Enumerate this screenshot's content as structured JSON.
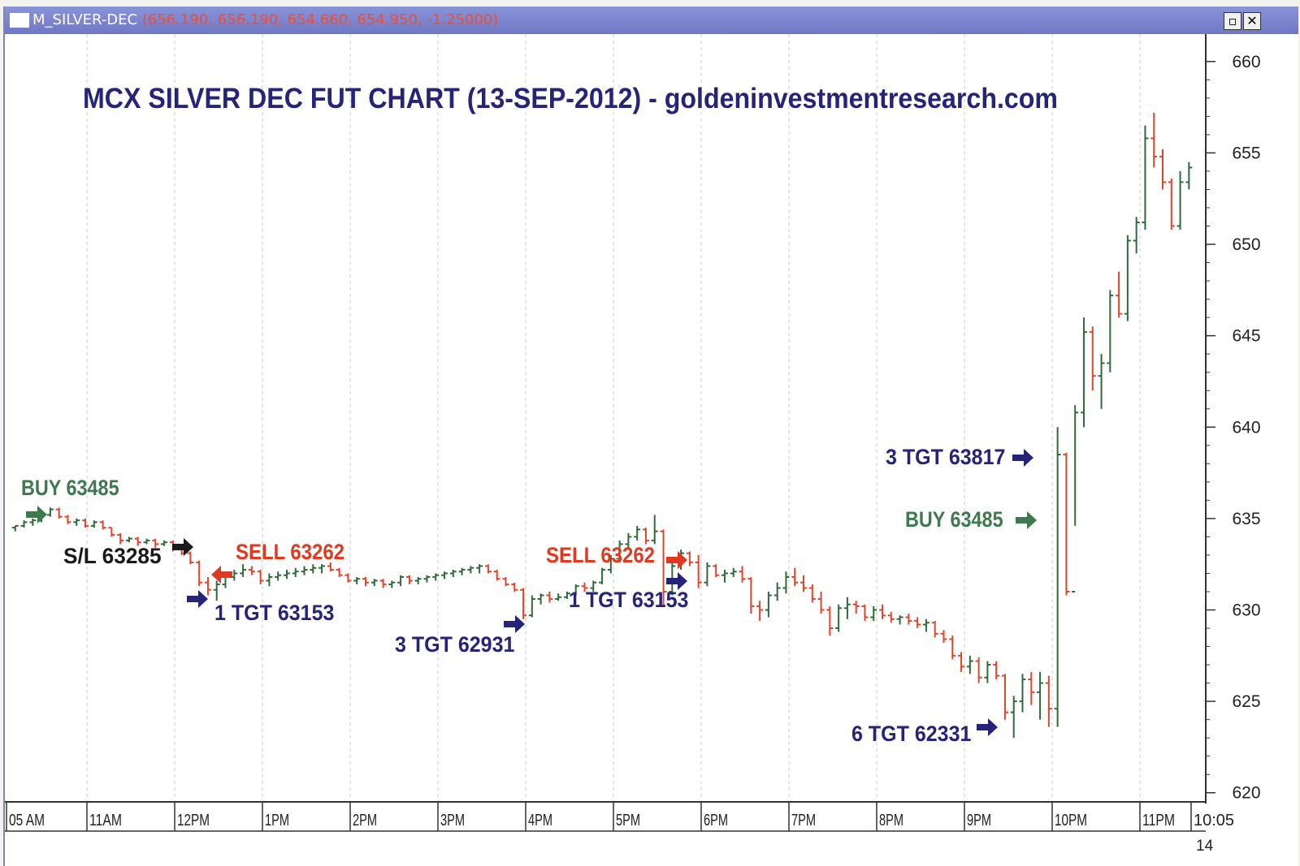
{
  "window": {
    "symbol": "M_SILVER-DEC",
    "ohlc_readout": "(656.190, 656.190, 654.660, 654.950, -1.25000)",
    "restore_label": "▫",
    "close_label": "✕"
  },
  "colors": {
    "up_bar": "#2f6b3a",
    "down_bar": "#e3452b",
    "navy_text": "#26237a",
    "green_text": "#3f7a4f",
    "red_text": "#e0391f",
    "black_text": "#1a1a1a",
    "grid": "#c9c9c9",
    "title_bar": "#7a82cc"
  },
  "chart_data": {
    "type": "ohlc",
    "title": "MCX SILVER DEC FUT CHART (13-SEP-2012) - goldeninvestmentresearch.com",
    "ylim": [
      619.5,
      661.5
    ],
    "yticks": [
      620,
      625,
      630,
      635,
      640,
      645,
      650,
      655,
      660
    ],
    "y_axis_position": "right",
    "grid": "vertical dashed at each hour",
    "x_ticks": [
      {
        "label": "05 AM",
        "t": 0
      },
      {
        "label": "11AM",
        "t": 55
      },
      {
        "label": "12PM",
        "t": 115
      },
      {
        "label": "1PM",
        "t": 175
      },
      {
        "label": "2PM",
        "t": 235
      },
      {
        "label": "3PM",
        "t": 295
      },
      {
        "label": "4PM",
        "t": 355
      },
      {
        "label": "5PM",
        "t": 415
      },
      {
        "label": "6PM",
        "t": 475
      },
      {
        "label": "7PM",
        "t": 535
      },
      {
        "label": "8PM",
        "t": 595
      },
      {
        "label": "9PM",
        "t": 655
      },
      {
        "label": "10PM",
        "t": 715
      },
      {
        "label": "11PM",
        "t": 775
      },
      {
        "label": "10:05",
        "t": 810
      }
    ],
    "x_sub_tick": "14",
    "t_range": [
      0,
      820
    ],
    "bars": [
      [
        4,
        634.5,
        634.6,
        634.3,
        634.6
      ],
      [
        8,
        634.6,
        634.9,
        634.5,
        634.8
      ],
      [
        12,
        634.8,
        635.0,
        634.6,
        634.9
      ],
      [
        16,
        634.9,
        635.3,
        634.8,
        635.2
      ],
      [
        20,
        635.2,
        635.6,
        635.1,
        635.5
      ],
      [
        24,
        635.5,
        635.6,
        635.0,
        635.1
      ],
      [
        28,
        635.1,
        635.2,
        634.7,
        634.8
      ],
      [
        32,
        634.8,
        635.0,
        634.6,
        634.9
      ],
      [
        36,
        634.9,
        635.0,
        634.5,
        634.6
      ],
      [
        40,
        634.6,
        634.9,
        634.5,
        634.8
      ],
      [
        44,
        634.8,
        634.9,
        634.4,
        634.5
      ],
      [
        48,
        634.5,
        634.5,
        634.0,
        634.1
      ],
      [
        52,
        634.1,
        634.2,
        633.6,
        633.8
      ],
      [
        56,
        633.8,
        634.0,
        633.7,
        633.9
      ],
      [
        60,
        633.9,
        634.0,
        633.5,
        633.7
      ],
      [
        64,
        633.7,
        633.9,
        633.6,
        633.8
      ],
      [
        68,
        633.8,
        633.9,
        633.4,
        633.6
      ],
      [
        72,
        633.6,
        633.8,
        633.5,
        633.7
      ],
      [
        76,
        633.7,
        633.8,
        633.2,
        633.4
      ],
      [
        80,
        633.4,
        633.5,
        633.0,
        633.1
      ],
      [
        84,
        633.1,
        633.2,
        632.5,
        632.6
      ],
      [
        88,
        632.6,
        632.7,
        631.3,
        631.5
      ],
      [
        92,
        631.5,
        631.8,
        630.8,
        631.1
      ],
      [
        96,
        631.1,
        631.6,
        630.5,
        631.4
      ],
      [
        100,
        631.4,
        632.0,
        631.2,
        631.8
      ],
      [
        104,
        631.8,
        632.2,
        631.6,
        632.0
      ],
      [
        108,
        632.0,
        632.5,
        631.8,
        632.2
      ],
      [
        112,
        632.2,
        632.4,
        631.9,
        632.1
      ],
      [
        116,
        632.1,
        632.2,
        631.4,
        631.6
      ],
      [
        120,
        631.6,
        632.0,
        631.3,
        631.8
      ],
      [
        124,
        631.8,
        632.1,
        631.6,
        631.9
      ],
      [
        128,
        631.9,
        632.2,
        631.7,
        632.0
      ],
      [
        132,
        632.0,
        632.3,
        631.8,
        632.1
      ],
      [
        136,
        632.1,
        632.4,
        631.9,
        632.2
      ],
      [
        140,
        632.2,
        632.5,
        632.0,
        632.3
      ],
      [
        144,
        632.3,
        632.5,
        632.0,
        632.4
      ],
      [
        148,
        632.4,
        632.6,
        632.1,
        632.2
      ],
      [
        152,
        632.2,
        632.3,
        631.8,
        631.9
      ],
      [
        156,
        631.9,
        632.0,
        631.5,
        631.6
      ],
      [
        160,
        631.6,
        631.8,
        631.4,
        631.7
      ],
      [
        164,
        631.7,
        631.8,
        631.3,
        631.5
      ],
      [
        168,
        631.5,
        631.7,
        631.3,
        631.6
      ],
      [
        172,
        631.6,
        631.7,
        631.2,
        631.4
      ],
      [
        176,
        631.4,
        631.6,
        631.2,
        631.5
      ],
      [
        180,
        631.5,
        631.9,
        631.3,
        631.8
      ],
      [
        184,
        631.8,
        631.9,
        631.4,
        631.6
      ],
      [
        188,
        631.6,
        631.8,
        631.4,
        631.7
      ],
      [
        192,
        631.7,
        631.9,
        631.5,
        631.8
      ],
      [
        196,
        631.8,
        632.0,
        631.6,
        631.9
      ],
      [
        200,
        631.9,
        632.1,
        631.7,
        632.0
      ],
      [
        204,
        632.0,
        632.2,
        631.8,
        632.1
      ],
      [
        208,
        632.1,
        632.3,
        631.9,
        632.2
      ],
      [
        212,
        632.2,
        632.4,
        632.0,
        632.3
      ],
      [
        216,
        632.3,
        632.5,
        632.0,
        632.4
      ],
      [
        220,
        632.4,
        632.5,
        632.0,
        632.1
      ],
      [
        224,
        632.1,
        632.2,
        631.6,
        631.7
      ],
      [
        228,
        631.7,
        631.8,
        631.3,
        631.4
      ],
      [
        232,
        631.4,
        631.5,
        631.0,
        631.1
      ],
      [
        236,
        631.1,
        631.2,
        629.5,
        629.7
      ],
      [
        240,
        629.7,
        630.8,
        629.6,
        630.6
      ],
      [
        244,
        630.6,
        630.9,
        630.3,
        630.8
      ],
      [
        248,
        630.8,
        631.0,
        630.4,
        630.6
      ],
      [
        252,
        630.6,
        630.9,
        630.5,
        630.7
      ],
      [
        256,
        630.7,
        631.0,
        630.6,
        630.9
      ],
      [
        260,
        630.9,
        631.4,
        630.8,
        631.3
      ],
      [
        264,
        631.3,
        631.5,
        631.0,
        631.2
      ],
      [
        268,
        631.2,
        631.6,
        631.0,
        631.5
      ],
      [
        272,
        631.5,
        632.3,
        631.4,
        632.2
      ],
      [
        276,
        632.2,
        633.0,
        632.0,
        632.8
      ],
      [
        280,
        632.8,
        633.8,
        632.6,
        633.6
      ],
      [
        284,
        633.6,
        634.2,
        633.3,
        634.0
      ],
      [
        288,
        634.0,
        634.6,
        633.8,
        634.4
      ],
      [
        292,
        634.4,
        634.5,
        633.6,
        633.8
      ],
      [
        296,
        633.8,
        635.2,
        633.6,
        634.3
      ],
      [
        300,
        634.3,
        634.4,
        630.2,
        631.0
      ],
      [
        304,
        631.0,
        632.6,
        630.8,
        632.4
      ],
      [
        308,
        632.4,
        633.3,
        632.2,
        633.1
      ],
      [
        312,
        633.1,
        633.2,
        632.4,
        632.6
      ],
      [
        316,
        632.6,
        633.0,
        631.2,
        631.5
      ],
      [
        320,
        631.5,
        632.6,
        631.3,
        632.4
      ],
      [
        324,
        632.4,
        632.5,
        631.8,
        631.9
      ],
      [
        328,
        631.9,
        632.2,
        631.5,
        632.0
      ],
      [
        332,
        632.0,
        632.3,
        631.8,
        632.1
      ],
      [
        336,
        632.1,
        632.4,
        631.5,
        631.7
      ],
      [
        340,
        631.7,
        631.8,
        629.8,
        630.2
      ],
      [
        344,
        630.2,
        630.5,
        629.4,
        630.0
      ],
      [
        348,
        630.0,
        631.0,
        629.6,
        630.8
      ],
      [
        352,
        630.8,
        631.5,
        630.5,
        631.2
      ],
      [
        356,
        631.2,
        632.1,
        630.9,
        631.8
      ],
      [
        360,
        631.8,
        632.3,
        631.3,
        631.5
      ],
      [
        364,
        631.5,
        631.9,
        631.0,
        631.2
      ],
      [
        368,
        631.2,
        631.4,
        630.4,
        630.6
      ],
      [
        372,
        630.6,
        631.0,
        629.8,
        630.0
      ],
      [
        376,
        630.0,
        630.2,
        628.6,
        629.0
      ],
      [
        380,
        629.0,
        630.3,
        628.8,
        630.1
      ],
      [
        384,
        630.1,
        630.7,
        629.5,
        630.3
      ],
      [
        388,
        630.3,
        630.5,
        629.8,
        630.2
      ],
      [
        392,
        630.2,
        630.3,
        629.4,
        629.6
      ],
      [
        396,
        629.6,
        630.2,
        629.4,
        630.0
      ],
      [
        400,
        630.0,
        630.3,
        629.5,
        629.7
      ],
      [
        404,
        629.7,
        629.9,
        629.3,
        629.5
      ],
      [
        408,
        629.5,
        629.7,
        629.2,
        629.6
      ],
      [
        412,
        629.6,
        629.8,
        629.2,
        629.4
      ],
      [
        416,
        629.4,
        629.6,
        629.0,
        629.2
      ],
      [
        420,
        629.2,
        629.5,
        628.8,
        629.3
      ],
      [
        424,
        629.3,
        629.4,
        628.5,
        628.7
      ],
      [
        428,
        628.7,
        628.9,
        628.2,
        628.4
      ],
      [
        432,
        628.4,
        628.6,
        627.3,
        627.5
      ],
      [
        436,
        627.5,
        627.7,
        626.6,
        626.9
      ],
      [
        440,
        626.9,
        627.5,
        626.5,
        627.2
      ],
      [
        444,
        627.2,
        627.4,
        626.0,
        626.3
      ],
      [
        448,
        626.3,
        627.2,
        626.0,
        627.0
      ],
      [
        452,
        627.0,
        627.2,
        626.2,
        626.4
      ],
      [
        456,
        626.4,
        626.5,
        624.0,
        624.4
      ],
      [
        460,
        624.4,
        625.3,
        623.0,
        625.0
      ],
      [
        464,
        625.0,
        626.5,
        624.4,
        626.2
      ],
      [
        468,
        626.2,
        626.6,
        624.8,
        625.5
      ],
      [
        472,
        625.5,
        626.6,
        624.0,
        626.0
      ],
      [
        476,
        626.0,
        626.4,
        623.6,
        624.6
      ],
      [
        480,
        624.6,
        640.0,
        623.6,
        638.5
      ],
      [
        484,
        638.5,
        638.6,
        630.8,
        631.0
      ],
      [
        488,
        631.0,
        641.2,
        634.6,
        640.8
      ],
      [
        492,
        640.8,
        646.0,
        640.0,
        645.2
      ],
      [
        496,
        645.2,
        645.5,
        642.0,
        642.8
      ],
      [
        500,
        642.8,
        644.0,
        641.0,
        643.5
      ],
      [
        504,
        643.5,
        647.5,
        643.0,
        647.2
      ],
      [
        508,
        647.2,
        648.5,
        646.0,
        646.2
      ],
      [
        512,
        646.2,
        650.5,
        645.8,
        650.2
      ],
      [
        516,
        650.2,
        651.5,
        649.5,
        651.2
      ],
      [
        520,
        651.2,
        656.5,
        650.8,
        655.8
      ],
      [
        524,
        655.8,
        657.2,
        654.2,
        654.8
      ],
      [
        528,
        654.8,
        655.2,
        653.0,
        653.4
      ],
      [
        532,
        653.4,
        653.6,
        650.8,
        651.0
      ],
      [
        536,
        651.0,
        654.0,
        650.8,
        653.4
      ],
      [
        540,
        653.4,
        654.5,
        653.0,
        654.2
      ]
    ],
    "annotations": [
      {
        "label": "BUY 63485",
        "color": "green"
      },
      {
        "label": "S/L 63285",
        "color": "black"
      },
      {
        "label": "SELL 63262",
        "color": "red"
      },
      {
        "label": "1 TGT 63153",
        "color": "navy"
      },
      {
        "label": "3 TGT 62931",
        "color": "navy"
      },
      {
        "label": "SELL 63262",
        "color": "red"
      },
      {
        "label": "1 TGT 63153",
        "color": "navy"
      },
      {
        "label": "3 TGT 63817",
        "color": "navy"
      },
      {
        "label": "BUY 63485",
        "color": "green"
      },
      {
        "label": "6 TGT 62331",
        "color": "navy"
      }
    ]
  }
}
